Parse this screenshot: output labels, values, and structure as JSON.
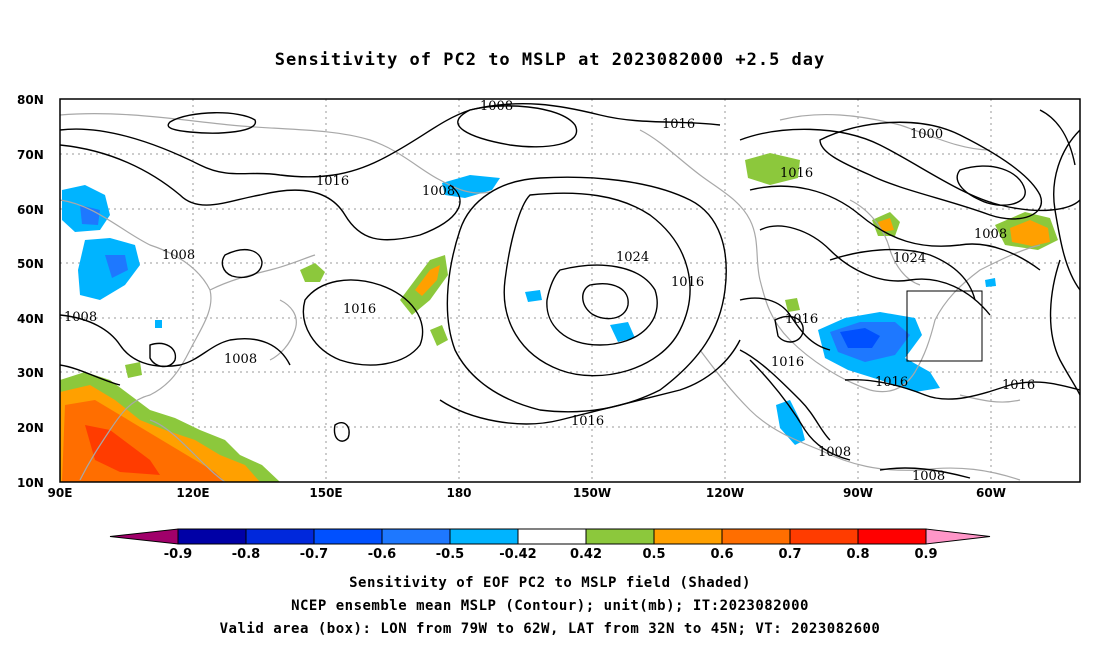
{
  "title": "Sensitivity of PC2 to MSLP at 2023082000 +2.5 day",
  "map": {
    "lat_labels": [
      "80N",
      "70N",
      "60N",
      "50N",
      "40N",
      "30N",
      "20N",
      "10N"
    ],
    "lon_labels": [
      "90E",
      "120E",
      "150E",
      "180",
      "150W",
      "120W",
      "90W",
      "60W"
    ],
    "contour_labels": [
      {
        "text": "1008"
      },
      {
        "text": "1016"
      },
      {
        "text": "1000"
      },
      {
        "text": "1016"
      },
      {
        "text": "1008"
      },
      {
        "text": "1016"
      },
      {
        "text": "1008"
      },
      {
        "text": "1008"
      },
      {
        "text": "1024"
      },
      {
        "text": "1024"
      },
      {
        "text": "1016"
      },
      {
        "text": "1016"
      },
      {
        "text": "1016"
      },
      {
        "text": "1008"
      },
      {
        "text": "1016"
      },
      {
        "text": "1016"
      },
      {
        "text": "1016"
      },
      {
        "text": "1016"
      },
      {
        "text": "1008"
      },
      {
        "text": "1008"
      },
      {
        "text": "1008"
      }
    ],
    "valid_box": {
      "lon_from": "79W",
      "lon_to": "62W",
      "lat_from": "32N",
      "lat_to": "45N"
    }
  },
  "colorbar": {
    "tick_labels": [
      "-0.9",
      "-0.8",
      "-0.7",
      "-0.6",
      "-0.5",
      "-0.42",
      "0.42",
      "0.5",
      "0.6",
      "0.7",
      "0.8",
      "0.9"
    ],
    "colors": [
      "#a0006a",
      "#0000a6",
      "#0028dc",
      "#0050ff",
      "#1e78ff",
      "#00b4ff",
      "#ffffff",
      "#8cc83c",
      "#ffa000",
      "#ff6e00",
      "#ff3c00",
      "#ff0000",
      "#ff96c8"
    ]
  },
  "captions": {
    "line1": "Sensitivity of EOF PC2 to MSLP field (Shaded)",
    "line2": "NCEP ensemble mean MSLP (Contour); unit(mb); IT:2023082000",
    "line3": "Valid area (box): LON from 79W to 62W, LAT from 32N to 45N; VT: 2023082600"
  }
}
